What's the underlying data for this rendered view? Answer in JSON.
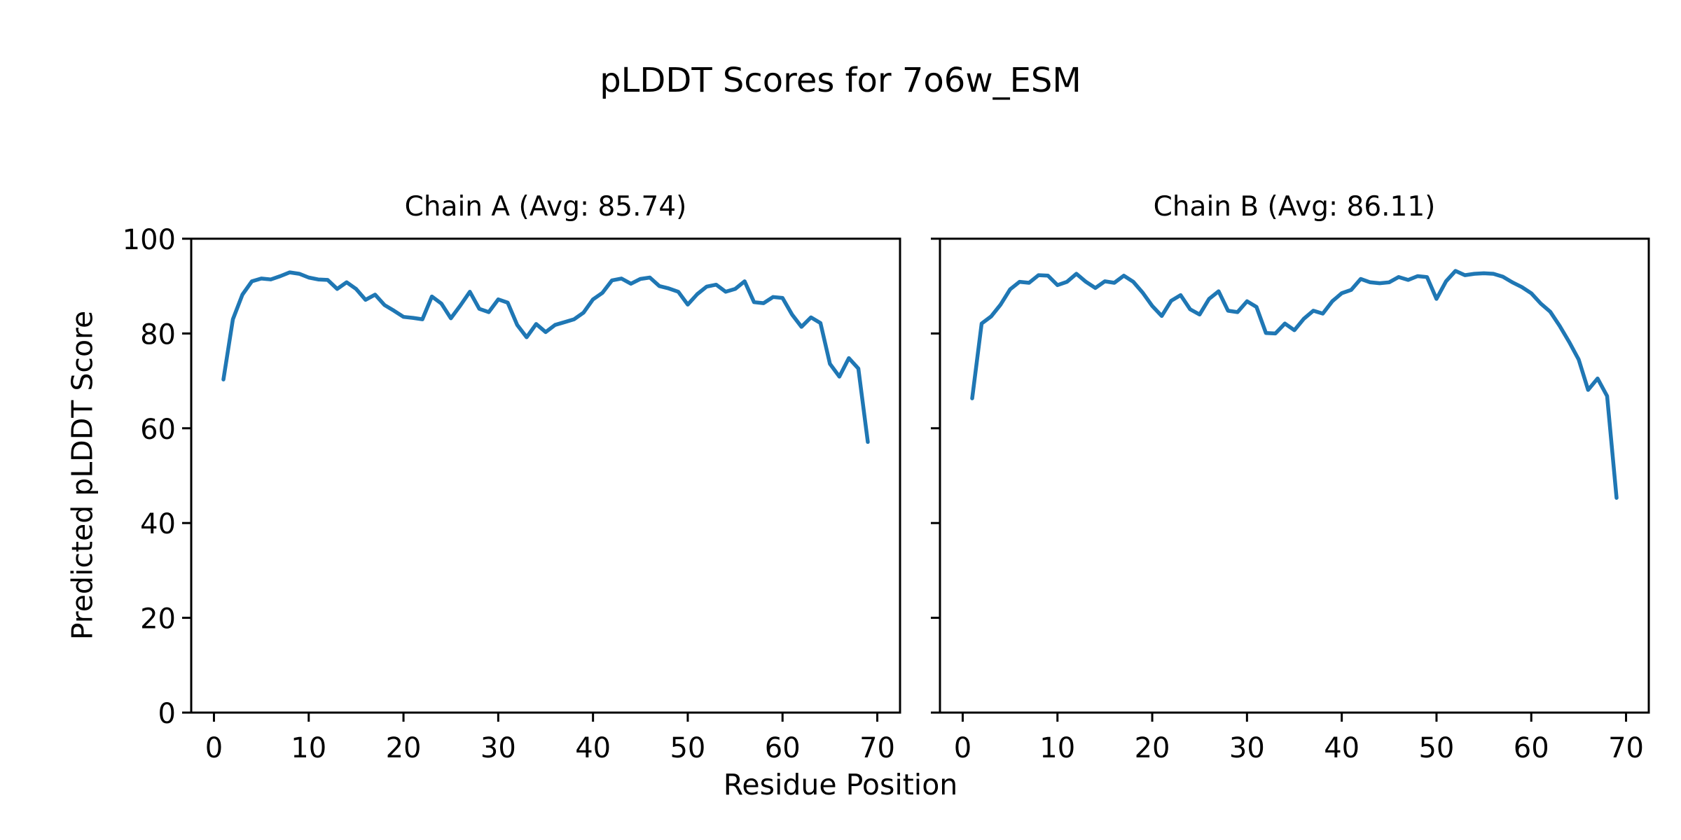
{
  "figure": {
    "title": "pLDDT Scores for 7o6w_ESM",
    "xlabel": "Residue Position",
    "ylabel": "Predicted pLDDT Score",
    "background_color": "#ffffff",
    "text_color": "#000000",
    "spine_color": "#000000"
  },
  "chart_data": [
    {
      "type": "line",
      "title": "Chain A (Avg: 85.74)",
      "chain": "A",
      "avg": 85.74,
      "line_color": "#1f77b4",
      "xlim": [
        -2.4,
        72.4
      ],
      "ylim": [
        0,
        100
      ],
      "xticks": [
        0,
        10,
        20,
        30,
        40,
        50,
        60,
        70
      ],
      "yticks": [
        0,
        20,
        40,
        60,
        80,
        100
      ],
      "show_ytick_labels": true,
      "grid": false,
      "legend": "none",
      "x": [
        1,
        2,
        3,
        4,
        5,
        6,
        7,
        8,
        9,
        10,
        11,
        12,
        13,
        14,
        15,
        16,
        17,
        18,
        19,
        20,
        21,
        22,
        23,
        24,
        25,
        26,
        27,
        28,
        29,
        30,
        31,
        32,
        33,
        34,
        35,
        36,
        37,
        38,
        39,
        40,
        41,
        42,
        43,
        44,
        45,
        46,
        47,
        48,
        49,
        50,
        51,
        52,
        53,
        54,
        55,
        56,
        57,
        58,
        59,
        60,
        61,
        62,
        63,
        64,
        65,
        66,
        67,
        68,
        69
      ],
      "y": [
        70.3,
        83.0,
        88.2,
        91.0,
        91.6,
        91.4,
        92.1,
        92.9,
        92.6,
        91.8,
        91.4,
        91.3,
        89.4,
        90.8,
        89.4,
        87.1,
        88.2,
        86.0,
        84.8,
        83.5,
        83.3,
        83.0,
        87.8,
        86.3,
        83.2,
        85.9,
        88.8,
        85.2,
        84.5,
        87.2,
        86.5,
        81.8,
        79.2,
        82.0,
        80.3,
        81.8,
        82.4,
        83.0,
        84.4,
        87.2,
        88.6,
        91.2,
        91.6,
        90.5,
        91.5,
        91.8,
        90.0,
        89.5,
        88.8,
        86.1,
        88.3,
        89.9,
        90.3,
        88.8,
        89.4,
        91.0,
        86.6,
        86.4,
        87.7,
        87.5,
        84.0,
        81.4,
        83.4,
        82.2,
        73.6,
        70.9,
        74.8,
        72.6,
        57.1
      ]
    },
    {
      "type": "line",
      "title": "Chain B (Avg: 86.11)",
      "chain": "B",
      "avg": 86.11,
      "line_color": "#1f77b4",
      "xlim": [
        -2.4,
        72.4
      ],
      "ylim": [
        0,
        100
      ],
      "xticks": [
        0,
        10,
        20,
        30,
        40,
        50,
        60,
        70
      ],
      "yticks": [
        0,
        20,
        40,
        60,
        80,
        100
      ],
      "show_ytick_labels": false,
      "grid": false,
      "legend": "none",
      "x": [
        1,
        2,
        3,
        4,
        5,
        6,
        7,
        8,
        9,
        10,
        11,
        12,
        13,
        14,
        15,
        16,
        17,
        18,
        19,
        20,
        21,
        22,
        23,
        24,
        25,
        26,
        27,
        28,
        29,
        30,
        31,
        32,
        33,
        34,
        35,
        36,
        37,
        38,
        39,
        40,
        41,
        42,
        43,
        44,
        45,
        46,
        47,
        48,
        49,
        50,
        51,
        52,
        53,
        54,
        55,
        56,
        57,
        58,
        59,
        60,
        61,
        62,
        63,
        64,
        65,
        66,
        67,
        68,
        69
      ],
      "y": [
        66.3,
        82.1,
        83.6,
        86.1,
        89.3,
        90.9,
        90.7,
        92.3,
        92.2,
        90.2,
        90.9,
        92.6,
        90.9,
        89.6,
        91.0,
        90.7,
        92.2,
        90.9,
        88.6,
        85.8,
        83.7,
        86.9,
        88.1,
        85.1,
        84.0,
        87.3,
        88.9,
        84.8,
        84.5,
        86.8,
        85.6,
        80.1,
        80.0,
        82.1,
        80.7,
        83.1,
        84.8,
        84.2,
        86.8,
        88.5,
        89.2,
        91.5,
        90.8,
        90.6,
        90.8,
        91.9,
        91.3,
        92.1,
        91.9,
        87.3,
        91.0,
        93.2,
        92.3,
        92.6,
        92.7,
        92.6,
        92.0,
        90.8,
        89.8,
        88.5,
        86.3,
        84.6,
        81.6,
        78.2,
        74.5,
        68.1,
        70.5,
        66.8,
        45.3
      ]
    }
  ]
}
